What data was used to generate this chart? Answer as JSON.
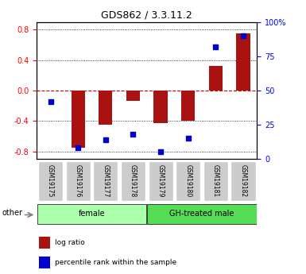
{
  "title": "GDS862 / 3.3.11.2",
  "samples": [
    "GSM19175",
    "GSM19176",
    "GSM19177",
    "GSM19178",
    "GSM19179",
    "GSM19180",
    "GSM19181",
    "GSM19182"
  ],
  "log_ratio": [
    0.0,
    -0.75,
    -0.45,
    -0.14,
    -0.43,
    -0.4,
    0.32,
    0.75
  ],
  "percentile": [
    42,
    8,
    14,
    18,
    5,
    15,
    82,
    90
  ],
  "groups": [
    {
      "label": "female",
      "start": 0,
      "end": 4,
      "color": "#aaffaa"
    },
    {
      "label": "GH-treated male",
      "start": 4,
      "end": 8,
      "color": "#55dd55"
    }
  ],
  "ylim": [
    -0.9,
    0.9
  ],
  "yticks_left": [
    -0.8,
    -0.4,
    0.0,
    0.4,
    0.8
  ],
  "yticks_right": [
    0,
    25,
    50,
    75,
    100
  ],
  "ytick_right_labels": [
    "0",
    "25",
    "50",
    "75",
    "100%"
  ],
  "bar_color": "#aa1111",
  "dot_color": "#0000cc",
  "zero_line_color": "#cc0000",
  "background_color": "#ffffff",
  "plot_bg_color": "#ffffff",
  "other_label": "other",
  "legend_log": "log ratio",
  "legend_pct": "percentile rank within the sample"
}
